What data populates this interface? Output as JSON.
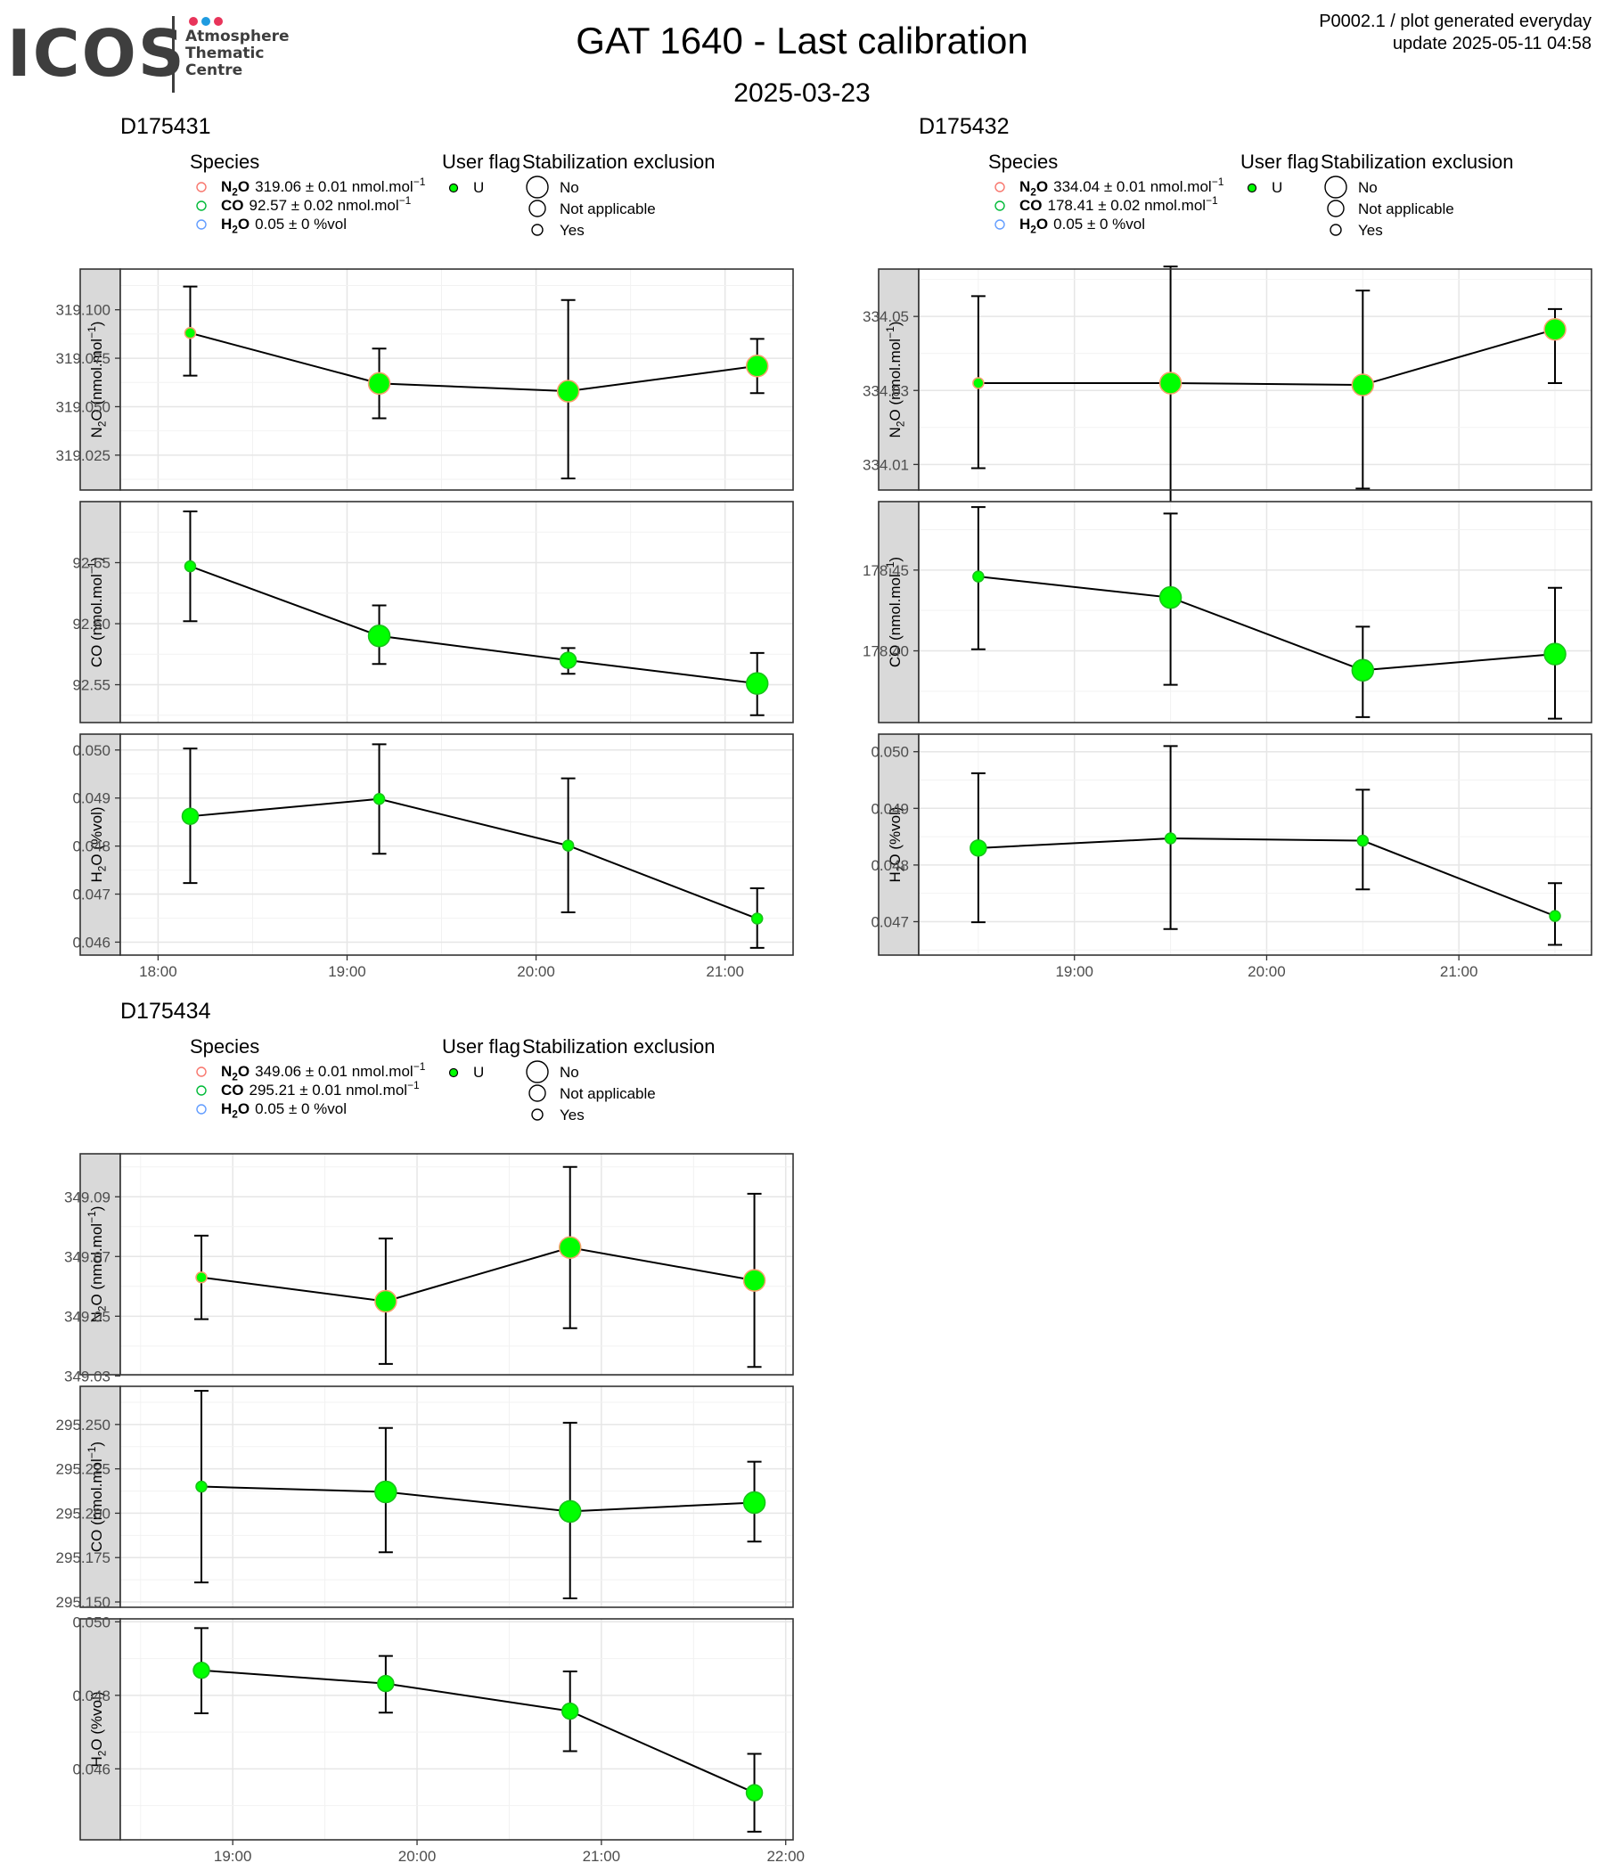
{
  "header": {
    "logo": {
      "wordmark": "ICOS",
      "tagline": [
        "Atmosphere",
        "Thematic",
        "Centre"
      ],
      "dot_colors": [
        "#e8345a",
        "#1f9be0",
        "#e8345a"
      ]
    },
    "title": "GAT 1640 - Last calibration",
    "subtitle": "2025-03-23",
    "note_line1": "P0002.1 / plot generated everyday",
    "note_line2": "update  2025-05-11 04:58"
  },
  "legend_common": {
    "species_title": "Species",
    "flag_title": "User flag",
    "stab_title": "Stabilization exclusion",
    "flag_value": "U",
    "stab_values": [
      "No",
      "Not applicable",
      "Yes"
    ],
    "species_colors": [
      "#f8766d",
      "#00ba38",
      "#619cff"
    ]
  },
  "colors": {
    "point": "#00ff00",
    "point_border": "#f8a06d",
    "line": "#000000",
    "panel_strip": "#d9d9d9"
  },
  "chart_data": [
    {
      "type": "scatter",
      "title": "D175431",
      "legend": [
        {
          "species": "N2O",
          "value": "319.06",
          "error": "0.01",
          "unit": "nmol.mol",
          "unit_exp": "−1"
        },
        {
          "species": "CO",
          "value": "92.57",
          "error": "0.02",
          "unit": "nmol.mol",
          "unit_exp": "−1"
        },
        {
          "species": "H2O",
          "value": "0.05",
          "error": "0",
          "unit": "%vol",
          "unit_exp": ""
        }
      ],
      "x_ticks": [
        "18:00",
        "19:00",
        "20:00",
        "21:00"
      ],
      "x_tick_hours": [
        18,
        19,
        20,
        21
      ],
      "xlim_hours": [
        17.8,
        21.36
      ],
      "panels": [
        {
          "species": "N2O",
          "ylabel_unit": "nmol.mol",
          "ylabel_exp": "−1",
          "ylim": [
            319.007,
            319.121
          ],
          "y_ticks": [
            "319.025",
            "319.050",
            "319.075",
            "319.100"
          ],
          "x_hours": [
            18.17,
            19.17,
            20.17,
            21.17
          ],
          "values": [
            319.088,
            319.062,
            319.058,
            319.071
          ],
          "err_low": [
            319.066,
            319.044,
            319.013,
            319.057
          ],
          "err_high": [
            319.112,
            319.08,
            319.105,
            319.085
          ],
          "sizes": [
            "Yes",
            "No",
            "No",
            "No"
          ]
        },
        {
          "species": "CO",
          "ylabel_unit": "nmol.mol",
          "ylabel_exp": "−1",
          "ylim": [
            92.519,
            92.7
          ],
          "y_ticks": [
            "92.55",
            "92.60",
            "92.65"
          ],
          "x_hours": [
            18.17,
            19.17,
            20.17,
            21.17
          ],
          "values": [
            92.647,
            92.59,
            92.57,
            92.551
          ],
          "err_low": [
            92.602,
            92.567,
            92.559,
            92.525
          ],
          "err_high": [
            92.692,
            92.615,
            92.58,
            92.576
          ],
          "sizes": [
            "Yes",
            "No",
            "Not applicable",
            "No"
          ]
        },
        {
          "species": "H2O",
          "ylabel_unit": "%vol",
          "ylabel_exp": "",
          "ylim": [
            0.04573,
            0.05033
          ],
          "y_ticks": [
            "0.046",
            "0.047",
            "0.048",
            "0.049",
            "0.050"
          ],
          "x_hours": [
            18.17,
            19.17,
            20.17,
            21.17
          ],
          "values": [
            0.04862,
            0.04898,
            0.04801,
            0.04649
          ],
          "err_low": [
            0.04723,
            0.04784,
            0.04662,
            0.04588
          ],
          "err_high": [
            0.05003,
            0.05012,
            0.04941,
            0.04712
          ],
          "sizes": [
            "Not applicable",
            "Yes",
            "Yes",
            "Yes"
          ]
        }
      ]
    },
    {
      "type": "scatter",
      "title": "D175432",
      "legend": [
        {
          "species": "N2O",
          "value": "334.04",
          "error": "0.01",
          "unit": "nmol.mol",
          "unit_exp": "−1"
        },
        {
          "species": "CO",
          "value": "178.41",
          "error": "0.02",
          "unit": "nmol.mol",
          "unit_exp": "−1"
        },
        {
          "species": "H2O",
          "value": "0.05",
          "error": "0",
          "unit": "%vol",
          "unit_exp": ""
        }
      ],
      "x_ticks": [
        "19:00",
        "20:00",
        "21:00"
      ],
      "x_tick_hours": [
        19,
        20,
        21
      ],
      "xlim_hours": [
        18.19,
        21.69
      ],
      "panels": [
        {
          "species": "N2O",
          "ylabel_unit": "nmol.mol",
          "ylabel_exp": "−1",
          "ylim": [
            334.0031,
            334.0628
          ],
          "y_ticks": [
            "334.01",
            "334.03",
            "334.05"
          ],
          "x_hours": [
            18.5,
            19.5,
            20.5,
            21.5
          ],
          "values": [
            334.032,
            334.032,
            334.0315,
            334.0465
          ],
          "err_low": [
            334.009,
            333.9995,
            334.0035,
            334.032
          ],
          "err_high": [
            334.0555,
            334.0635,
            334.057,
            334.052
          ],
          "sizes": [
            "Yes",
            "No",
            "No",
            "No"
          ]
        },
        {
          "species": "CO",
          "ylabel_unit": "nmol.mol",
          "ylabel_exp": "−1",
          "ylim": [
            178.3556,
            178.4924
          ],
          "y_ticks": [
            "178.40",
            "178.45"
          ],
          "x_hours": [
            18.5,
            19.5,
            20.5,
            21.5
          ],
          "values": [
            178.446,
            178.433,
            178.388,
            178.398
          ],
          "err_low": [
            178.401,
            178.379,
            178.359,
            178.358
          ],
          "err_high": [
            178.489,
            178.485,
            178.415,
            178.439
          ],
          "sizes": [
            "Yes",
            "No",
            "No",
            "No"
          ]
        },
        {
          "species": "H2O",
          "ylabel_unit": "%vol",
          "ylabel_exp": "",
          "ylim": [
            0.04641,
            0.05031
          ],
          "y_ticks": [
            "0.047",
            "0.048",
            "0.049",
            "0.050"
          ],
          "x_hours": [
            18.5,
            19.5,
            20.5,
            21.5
          ],
          "values": [
            0.0483,
            0.04847,
            0.04843,
            0.0471
          ],
          "err_low": [
            0.04699,
            0.04687,
            0.04757,
            0.04659
          ],
          "err_high": [
            0.04962,
            0.0501,
            0.04933,
            0.04768
          ],
          "sizes": [
            "Not applicable",
            "Yes",
            "Yes",
            "Yes"
          ]
        }
      ]
    },
    {
      "type": "scatter",
      "title": "D175434",
      "legend": [
        {
          "species": "N2O",
          "value": "349.06",
          "error": "0.01",
          "unit": "nmol.mol",
          "unit_exp": "−1"
        },
        {
          "species": "CO",
          "value": "295.21",
          "error": "0.01",
          "unit": "nmol.mol",
          "unit_exp": "−1"
        },
        {
          "species": "H2O",
          "value": "0.05",
          "error": "0",
          "unit": "%vol",
          "unit_exp": ""
        }
      ],
      "x_ticks": [
        "19:00",
        "20:00",
        "21:00",
        "22:00"
      ],
      "x_tick_hours": [
        19,
        20,
        21,
        22
      ],
      "xlim_hours": [
        18.39,
        22.04
      ],
      "panels": [
        {
          "species": "N2O",
          "ylabel_unit": "nmol.mol",
          "ylabel_exp": "−1",
          "ylim": [
            349.0304,
            349.1044
          ],
          "y_ticks": [
            "349.03",
            "349.05",
            "349.07",
            "349.09"
          ],
          "x_hours": [
            18.83,
            19.83,
            20.83,
            21.83
          ],
          "values": [
            349.063,
            349.055,
            349.073,
            349.062
          ],
          "err_low": [
            349.049,
            349.034,
            349.046,
            349.033
          ],
          "err_high": [
            349.077,
            349.076,
            349.1,
            349.091
          ],
          "sizes": [
            "Yes",
            "No",
            "No",
            "No"
          ]
        },
        {
          "species": "CO",
          "ylabel_unit": "nmol.mol",
          "ylabel_exp": "−1",
          "ylim": [
            295.147,
            295.2715
          ],
          "y_ticks": [
            "295.150",
            "295.175",
            "295.200",
            "295.225",
            "295.250"
          ],
          "x_hours": [
            18.83,
            19.83,
            20.83,
            21.83
          ],
          "values": [
            295.215,
            295.212,
            295.201,
            295.206
          ],
          "err_low": [
            295.161,
            295.178,
            295.152,
            295.184
          ],
          "err_high": [
            295.269,
            295.248,
            295.251,
            295.229
          ],
          "sizes": [
            "Yes",
            "No",
            "No",
            "No"
          ]
        },
        {
          "species": "H2O",
          "ylabel_unit": "%vol",
          "ylabel_exp": "",
          "ylim": [
            0.04407,
            0.05008
          ],
          "y_ticks": [
            "0.046",
            "0.048",
            "0.050"
          ],
          "x_hours": [
            18.83,
            19.83,
            20.83,
            21.83
          ],
          "values": [
            0.04868,
            0.04832,
            0.04757,
            0.04535
          ],
          "err_low": [
            0.04751,
            0.04753,
            0.04648,
            0.04429
          ],
          "err_high": [
            0.04983,
            0.04907,
            0.04865,
            0.04641
          ],
          "sizes": [
            "Not applicable",
            "Not applicable",
            "Not applicable",
            "Not applicable"
          ]
        }
      ]
    }
  ]
}
